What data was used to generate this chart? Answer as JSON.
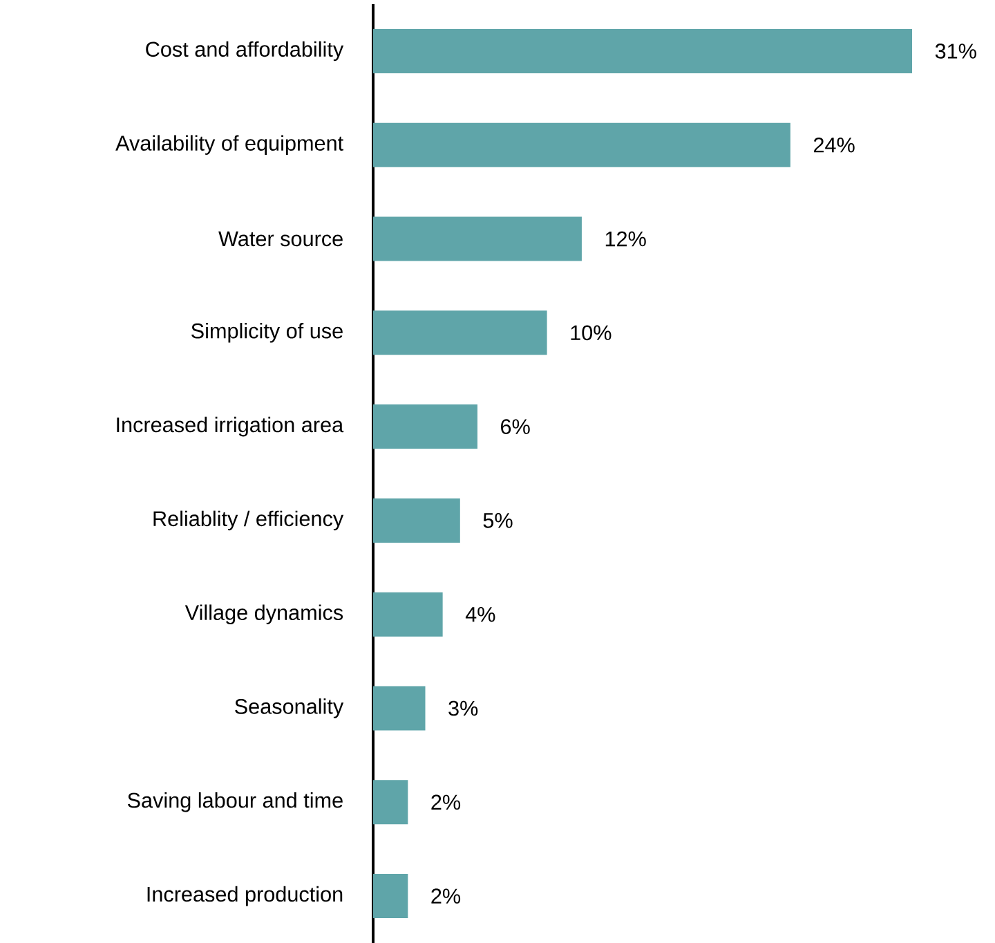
{
  "chart_data": {
    "type": "bar",
    "orientation": "horizontal",
    "categories": [
      "Cost and affordability",
      "Availability of equipment",
      "Water source",
      "Simplicity of use",
      "Increased irrigation area",
      "Reliablity / efficiency",
      "Village dynamics",
      "Seasonality",
      "Saving labour and time",
      "Increased production"
    ],
    "values": [
      31,
      24,
      12,
      10,
      6,
      5,
      4,
      3,
      2,
      2
    ],
    "value_labels": [
      "31%",
      "24%",
      "12%",
      "10%",
      "6%",
      "5%",
      "4%",
      "3%",
      "2%",
      "2%"
    ],
    "color": "#5fa5a9"
  }
}
